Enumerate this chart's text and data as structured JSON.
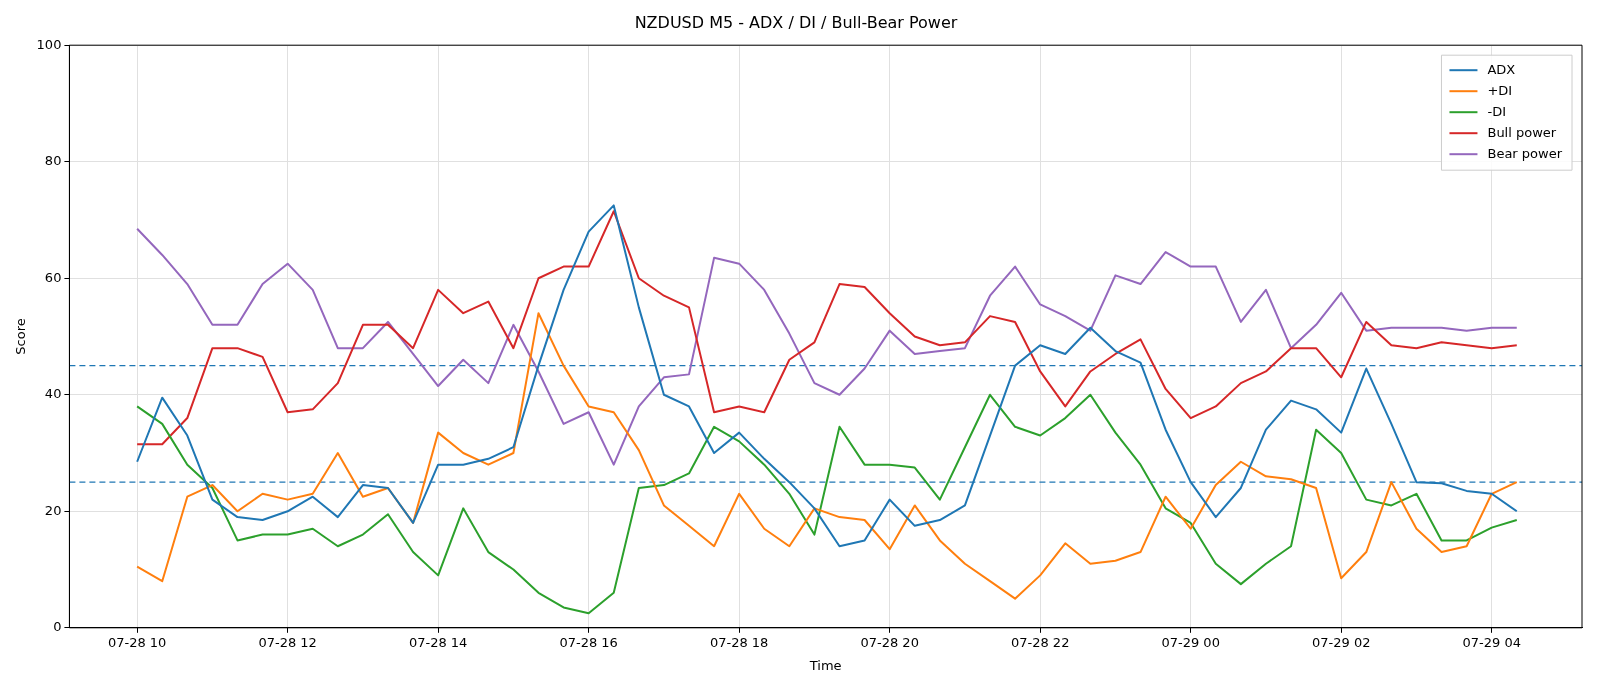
{
  "chart_data": {
    "type": "line",
    "title": "NZDUSD M5 - ADX / DI / Bull-Bear Power",
    "xlabel": "Time",
    "ylabel": "Score",
    "x": [
      "--07-28T10:00",
      "--07-28T10:20",
      "--07-28T10:40",
      "--07-28T11:00",
      "--07-28T11:20",
      "--07-28T11:40",
      "--07-28T12:00",
      "--07-28T12:20",
      "--07-28T12:40",
      "--07-28T13:00",
      "--07-28T13:20",
      "--07-28T13:40",
      "--07-28T14:00",
      "--07-28T14:20",
      "--07-28T14:40",
      "--07-28T15:00",
      "--07-28T15:20",
      "--07-28T15:40",
      "--07-28T16:00",
      "--07-28T16:20",
      "--07-28T16:40",
      "--07-28T17:00",
      "--07-28T17:20",
      "--07-28T17:40",
      "--07-28T18:00",
      "--07-28T18:20",
      "--07-28T18:40",
      "--07-28T19:00",
      "--07-28T19:20",
      "--07-28T19:40",
      "--07-28T20:00",
      "--07-28T20:20",
      "--07-28T20:40",
      "--07-28T21:00",
      "--07-28T21:20",
      "--07-28T21:40",
      "--07-28T22:00",
      "--07-28T22:20",
      "--07-28T22:40",
      "--07-28T23:00",
      "--07-28T23:20",
      "--07-28T23:40",
      "--07-29T00:00",
      "--07-29T00:20",
      "--07-29T00:40",
      "--07-29T01:00",
      "--07-29T01:20",
      "--07-29T01:40",
      "--07-29T02:00",
      "--07-29T02:20",
      "--07-29T02:40",
      "--07-29T03:00",
      "--07-29T03:20",
      "--07-29T03:40",
      "--07-29T04:00",
      "--07-29T04:20"
    ],
    "series": [
      {
        "name": "ADX",
        "color": "#1f77b4",
        "values": [
          28.5,
          39.5,
          33,
          22,
          19,
          18.5,
          20,
          22.5,
          19,
          24.5,
          24,
          18,
          28,
          28,
          29,
          31,
          45,
          58,
          68,
          72.5,
          55,
          40,
          38,
          30,
          33.5,
          29,
          25,
          20.5,
          14,
          15,
          22,
          17.5,
          18.5,
          21,
          33,
          45,
          48.5,
          47,
          51.5,
          47.5,
          45.5,
          34,
          25,
          19,
          24,
          34,
          39,
          37.5,
          33.5,
          44.5,
          35,
          25,
          24.8,
          23.5,
          23,
          20
        ]
      },
      {
        "name": "+DI",
        "color": "#ff7f0e",
        "values": [
          10.5,
          8,
          22.5,
          24.5,
          20,
          23,
          22,
          23,
          30,
          22.5,
          24,
          18,
          33.5,
          30,
          28,
          30,
          54,
          45,
          38,
          37,
          30.5,
          21,
          17.5,
          14,
          23,
          17,
          14,
          20.5,
          19,
          18.5,
          13.5,
          21,
          15,
          11,
          8,
          5,
          9,
          14.5,
          11,
          11.5,
          13,
          22.5,
          17,
          24.5,
          28.5,
          26,
          25.5,
          24,
          8.5,
          13,
          25,
          17,
          13,
          14,
          23,
          25
        ]
      },
      {
        "name": "-DI",
        "color": "#2ca02c",
        "values": [
          38,
          35,
          28,
          24,
          15,
          16,
          16,
          17,
          14,
          16,
          19.5,
          13,
          9,
          20.5,
          13,
          10,
          6,
          3.5,
          2.5,
          6,
          24,
          24.5,
          26.5,
          34.5,
          32,
          28,
          23,
          16,
          34.5,
          28,
          28,
          27.5,
          22,
          31,
          40,
          34.5,
          33,
          36,
          40,
          33.5,
          28,
          20.5,
          18,
          11,
          7.5,
          11,
          14,
          34,
          30,
          22,
          21,
          23,
          15,
          15,
          17.2,
          18.5
        ]
      },
      {
        "name": "Bull power",
        "color": "#d62728",
        "values": [
          31.5,
          31.5,
          36,
          48,
          48,
          46.5,
          37,
          37.5,
          42,
          52,
          52,
          48,
          58,
          54,
          56,
          48,
          60,
          62,
          62,
          71.5,
          60,
          57,
          55,
          37,
          38,
          37,
          46,
          49,
          59,
          58.5,
          54,
          50,
          48.5,
          49,
          53.5,
          52.5,
          44,
          38,
          44,
          47,
          49.5,
          41,
          36,
          38,
          42,
          44,
          48,
          48,
          43,
          52.5,
          48.5,
          48,
          49,
          48.5,
          48,
          48.5
        ]
      },
      {
        "name": "Bear power",
        "color": "#9467bd",
        "values": [
          68.5,
          64,
          59,
          52,
          52,
          59,
          62.5,
          58,
          48,
          48,
          52.5,
          47,
          41.5,
          46,
          42,
          52,
          44,
          35,
          37,
          28,
          38,
          43,
          43.5,
          63.5,
          62.5,
          58,
          50.5,
          42,
          40,
          44.5,
          51,
          47,
          47.5,
          48,
          57,
          62,
          55.5,
          53.5,
          51,
          60.5,
          59,
          64.5,
          62,
          62,
          52.5,
          58,
          48,
          52,
          57.5,
          51,
          51.5,
          51.5,
          51.5,
          51,
          51.5,
          51.5
        ]
      }
    ],
    "xlim": [
      "--07-28T09:06",
      "--07-29T05:12"
    ],
    "xticks": [
      {
        "value": "--07-28T10:00",
        "label": "07-28 10"
      },
      {
        "value": "--07-28T12:00",
        "label": "07-28 12"
      },
      {
        "value": "--07-28T14:00",
        "label": "07-28 14"
      },
      {
        "value": "--07-28T16:00",
        "label": "07-28 16"
      },
      {
        "value": "--07-28T18:00",
        "label": "07-28 18"
      },
      {
        "value": "--07-28T20:00",
        "label": "07-28 20"
      },
      {
        "value": "--07-28T22:00",
        "label": "07-28 22"
      },
      {
        "value": "--07-29T00:00",
        "label": "07-29 00"
      },
      {
        "value": "--07-29T02:00",
        "label": "07-29 02"
      },
      {
        "value": "--07-29T04:00",
        "label": "07-29 04"
      }
    ],
    "ylim": [
      0,
      100
    ],
    "yticks": [
      0,
      20,
      40,
      60,
      80,
      100
    ],
    "ref_lines": [
      {
        "axis": "y",
        "value": 45,
        "color": "#1f77b4",
        "line_style": "dashed"
      },
      {
        "axis": "y",
        "value": 25,
        "color": "#1f77b4",
        "line_style": "dashed"
      }
    ],
    "grid": true,
    "legend": "top right",
    "marker": "none",
    "line_style": "solid"
  }
}
